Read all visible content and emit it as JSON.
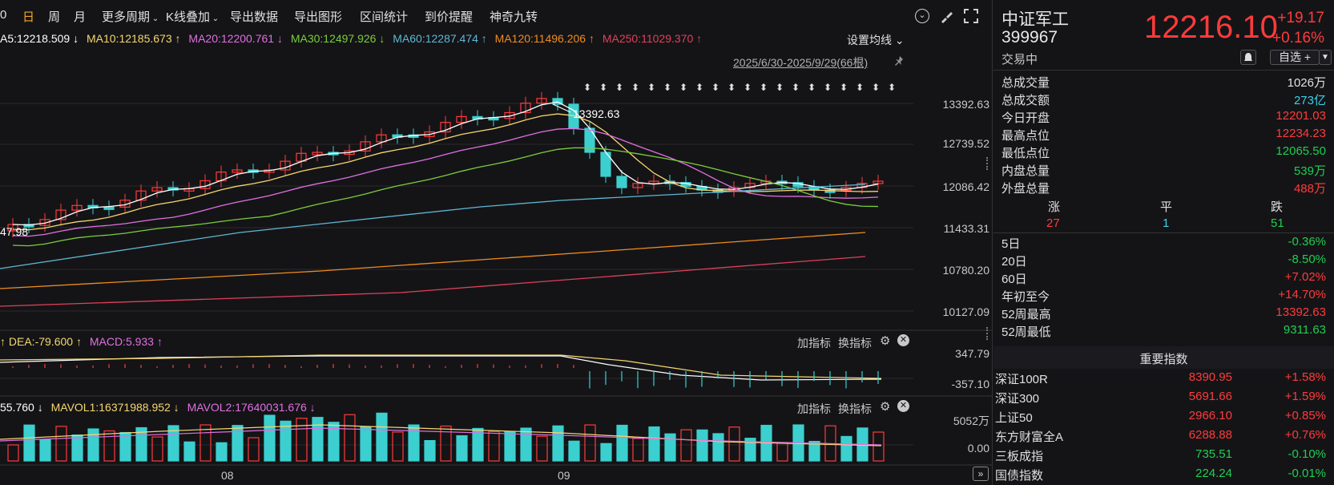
{
  "toolbar": {
    "items": [
      "0",
      "日",
      "周",
      "月",
      "更多周期",
      "K线叠加",
      "导出数据",
      "导出图形",
      "区间统计",
      "到价提醒",
      "神奇九转"
    ],
    "active": "日"
  },
  "ma_legend": {
    "ma5": "A5:12218.509 ↓",
    "ma10": "MA10:12185.673 ↑",
    "ma20": "MA20:12200.761 ↓",
    "ma30": "MA30:12497.926 ↓",
    "ma60": "MA60:12287.474 ↑",
    "ma120": "MA120:11496.206 ↑",
    "ma250": "MA250:11029.370 ↑",
    "settings": "设置均线 ⌄"
  },
  "range_label": "2025/6/30-2025/9/29(66根)",
  "price_axis": [
    "13392.63",
    "12739.52",
    "12086.42",
    "11433.31",
    "10780.20",
    "10127.09"
  ],
  "high_label": "13392.63",
  "low_left_label": "47.98",
  "macd_legend": {
    "dea": "↑ DEA:-79.600 ↑",
    "macd": "MACD:5.933 ↑",
    "add": "加指标",
    "switch": "换指标"
  },
  "macd_axis": [
    "347.79",
    "-357.10"
  ],
  "vol_legend": {
    "vol": "55.760 ↓",
    "mavol1": "MAVOL1:16371988.952 ↓",
    "mavol2": "MAVOL2:17640031.676 ↓",
    "add": "加指标",
    "switch": "换指标"
  },
  "vol_axis": [
    "5052万",
    "0.00"
  ],
  "x_axis": [
    "08",
    "09"
  ],
  "colors": {
    "up": "#ff3b3b",
    "down": "#3ccfcf",
    "ma5": "#ffffff",
    "ma10": "#f5d76e",
    "ma20": "#e070e0",
    "ma30": "#7ccd3c",
    "ma60": "#5fb7d4",
    "ma120": "#f08c1e",
    "ma250": "#e0405a"
  },
  "quote": {
    "name": "中证军工",
    "code": "399967",
    "price": "12216.10",
    "change": "+19.17",
    "change_pct": "+0.16%",
    "status": "交易中",
    "watch_btn": "自选 +"
  },
  "stats": [
    {
      "label": "总成交量",
      "value": "1026万",
      "color": "white"
    },
    {
      "label": "总成交额",
      "value": "273亿",
      "color": "cyan"
    },
    {
      "label": "今日开盘",
      "value": "12201.03",
      "color": "red"
    },
    {
      "label": "最高点位",
      "value": "12234.23",
      "color": "red"
    },
    {
      "label": "最低点位",
      "value": "12065.50",
      "color": "green"
    },
    {
      "label": "内盘总量",
      "value": "539万",
      "color": "green"
    },
    {
      "label": "外盘总量",
      "value": "488万",
      "color": "red"
    }
  ],
  "breadth": {
    "headers": [
      "涨",
      "平",
      "跌"
    ],
    "values": [
      "27",
      "1",
      "51"
    ]
  },
  "periods": [
    {
      "label": "5日",
      "value": "-0.36%",
      "color": "green"
    },
    {
      "label": "20日",
      "value": "-8.50%",
      "color": "green"
    },
    {
      "label": "60日",
      "value": "+7.02%",
      "color": "red"
    },
    {
      "label": "年初至今",
      "value": "+14.70%",
      "color": "red"
    },
    {
      "label": "52周最高",
      "value": "13392.63",
      "color": "red"
    },
    {
      "label": "52周最低",
      "value": "9311.63",
      "color": "green"
    }
  ],
  "indices_title": "重要指数",
  "indices": [
    {
      "name": "深证100R",
      "price": "8390.95",
      "chg": "+1.58%",
      "color": "red"
    },
    {
      "name": "深证300",
      "price": "5691.66",
      "chg": "+1.59%",
      "color": "red"
    },
    {
      "name": "上证50",
      "price": "2966.10",
      "chg": "+0.85%",
      "color": "red"
    },
    {
      "name": "东方财富全A",
      "price": "6288.88",
      "chg": "+0.76%",
      "color": "red"
    },
    {
      "name": "三板成指",
      "price": "735.51",
      "chg": "-0.10%",
      "color": "green"
    },
    {
      "name": "国债指数",
      "price": "224.24",
      "chg": "-0.01%",
      "color": "green"
    }
  ]
}
